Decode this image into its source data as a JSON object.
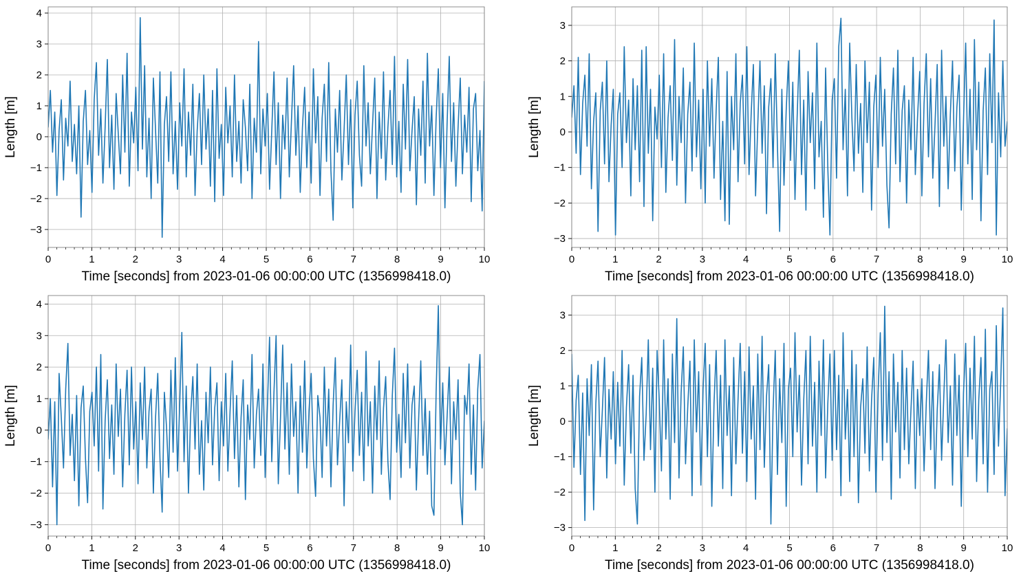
{
  "chart_data": [
    {
      "type": "line",
      "xlabel": "Time [seconds] from 2023-01-06 00:00:00 UTC (1356998418.0)",
      "ylabel": "Length [m]",
      "xlim": [
        0,
        10
      ],
      "ylim": [
        -3.58,
        4.2
      ],
      "xticks": [
        0,
        1,
        2,
        3,
        4,
        5,
        6,
        7,
        8,
        9,
        10
      ],
      "yticks": [
        -3,
        -2,
        -1,
        0,
        1,
        2,
        3,
        4
      ],
      "grid": true,
      "color": "#1f77b4",
      "values": [
        0.3,
        1.5,
        -0.5,
        0.8,
        -1.9,
        0.2,
        1.2,
        -1.4,
        0.6,
        -0.3,
        1.8,
        -0.8,
        0.4,
        -1.2,
        1.0,
        -2.6,
        0.5,
        1.5,
        -0.9,
        0.2,
        -1.8,
        1.2,
        2.4,
        -0.6,
        0.9,
        -1.5,
        0.3,
        2.5,
        -1.0,
        0.7,
        -1.7,
        1.4,
        0.1,
        -1.2,
        2.0,
        -0.5,
        2.7,
        -1.6,
        0.8,
        -0.2,
        1.6,
        -1.1,
        3.85,
        -0.4,
        2.3,
        -1.3,
        0.6,
        -2.0,
        1.9,
        0.2,
        -1.5,
        2.1,
        -3.25,
        0.4,
        1.3,
        -0.8,
        2.1,
        -1.2,
        0.5,
        -1.7,
        1.1,
        -0.3,
        2.2,
        -1.3,
        0.8,
        -0.6,
        1.7,
        -1.9,
        0.2,
        1.4,
        -0.9,
        2.0,
        -0.4,
        0.9,
        -1.6,
        1.5,
        -2.1,
        2.2,
        -0.7,
        0.4,
        -1.9,
        1.6,
        -0.2,
        1.0,
        -1.3,
        2.0,
        -0.8,
        0.5,
        -1.5,
        1.2,
        0.3,
        -1.1,
        1.7,
        -2.0,
        0.6,
        -0.5,
        3.08,
        -1.2,
        0.9,
        -0.3,
        1.4,
        -1.7,
        0.2,
        2.1,
        -0.9,
        1.1,
        -2.0,
        0.7,
        -0.4,
        1.9,
        -1.3,
        0.5,
        2.3,
        -0.6,
        1.0,
        -1.8,
        0.3,
        1.6,
        -1.0,
        0.8,
        -1.5,
        2.2,
        -0.2,
        1.3,
        -1.9,
        0.6,
        1.7,
        -0.8,
        2.4,
        -1.1,
        -2.7,
        0.9,
        -0.5,
        1.5,
        -1.4,
        0.2,
        2.0,
        -0.9,
        1.2,
        -2.3,
        0.7,
        1.8,
        -0.6,
        -1.6,
        2.3,
        -0.3,
        1.1,
        -1.2,
        0.4,
        1.9,
        -2.0,
        0.8,
        -0.7,
        2.1,
        -1.4,
        0.3,
        1.5,
        -0.9,
        2.6,
        -1.3,
        0.5,
        -1.8,
        1.7,
        -0.4,
        2.5,
        -1.1,
        0.2,
        1.3,
        -2.2,
        0.9,
        -0.6,
        1.8,
        -1.5,
        2.7,
        -0.3,
        1.0,
        -1.9,
        0.6,
        2.2,
        -1.0,
        1.4,
        -2.3,
        0.4,
        2.6,
        -0.8,
        1.1,
        -1.6,
        0.3,
        1.9,
        -1.2,
        0.7,
        -0.5,
        1.6,
        -2.1,
        0.9,
        1.4,
        -1.1,
        0.2,
        -2.4,
        1.8
      ]
    },
    {
      "type": "line",
      "xlabel": "Time [seconds] from 2023-01-06 00:00:00 UTC (1356998418.0)",
      "ylabel": "Length [m]",
      "xlim": [
        0,
        10
      ],
      "ylim": [
        -3.25,
        3.52
      ],
      "xticks": [
        0,
        1,
        2,
        3,
        4,
        5,
        6,
        7,
        8,
        9,
        10
      ],
      "yticks": [
        -3,
        -2,
        -1,
        0,
        1,
        2,
        3
      ],
      "grid": true,
      "color": "#1f77b4",
      "values": [
        0.4,
        1.3,
        -0.6,
        2.1,
        -1.2,
        0.8,
        1.6,
        -0.4,
        2.2,
        -1.6,
        0.3,
        1.1,
        -2.8,
        0.6,
        1.4,
        -0.9,
        2.0,
        -1.4,
        0.2,
        1.2,
        -2.9,
        0.5,
        1.1,
        -1.0,
        2.4,
        -0.3,
        0.9,
        -1.8,
        1.5,
        -0.5,
        1.3,
        -1.4,
        2.3,
        -2.1,
        2.4,
        -0.6,
        1.2,
        -2.5,
        0.7,
        -0.2,
        1.6,
        -1.0,
        2.2,
        -1.7,
        0.4,
        1.3,
        -0.8,
        2.6,
        -1.5,
        1.0,
        -0.3,
        1.8,
        -2.0,
        0.5,
        1.4,
        -1.1,
        2.5,
        -0.7,
        0.9,
        -1.6,
        1.2,
        -2.0,
        2.0,
        -0.4,
        1.5,
        -1.3,
        0.6,
        2.1,
        -1.9,
        0.3,
        -2.5,
        1.7,
        -2.6,
        1.0,
        -0.5,
        2.2,
        -1.4,
        0.8,
        1.6,
        -0.9,
        2.4,
        -1.2,
        0.5,
        1.9,
        -1.8,
        0.2,
        2.0,
        -0.6,
        1.3,
        -2.3,
        0.7,
        1.5,
        -1.0,
        2.2,
        -0.4,
        -2.8,
        1.2,
        -1.5,
        0.6,
        2.0,
        -0.8,
        1.4,
        -1.9,
        0.4,
        2.3,
        -1.2,
        0.9,
        -2.2,
        1.7,
        -0.3,
        1.1,
        -1.6,
        2.5,
        -0.7,
        0.3,
        -2.4,
        1.8,
        -1.0,
        -2.9,
        0.9,
        1.5,
        -1.3,
        2.4,
        3.2,
        -0.5,
        1.2,
        -1.8,
        2.5,
        0.4,
        -1.1,
        1.9,
        -0.6,
        0.8,
        -1.7,
        2.0,
        -0.3,
        1.4,
        -2.2,
        0.7,
        1.6,
        -1.0,
        2.1,
        -0.4,
        1.2,
        -1.5,
        -2.7,
        0.5,
        1.8,
        -0.9,
        2.3,
        -1.4,
        0.6,
        1.3,
        -2.0,
        0.9,
        -0.5,
        2.1,
        -1.2,
        0.4,
        1.7,
        -1.8,
        0.8,
        2.2,
        -0.7,
        1.5,
        -1.3,
        0.2,
        1.9,
        -2.1,
        2.3,
        -0.4,
        1.0,
        -1.6,
        0.5,
        2.0,
        -1.1,
        0.7,
        1.6,
        -2.2,
        0.3,
        2.5,
        -0.9,
        1.2,
        -1.9,
        2.6,
        -0.5,
        1.4,
        -2.5,
        0.6,
        1.8,
        -1.2,
        2.2,
        -0.3,
        3.15,
        -2.9,
        1.1,
        -0.7,
        2.0,
        -0.4,
        0.3
      ]
    },
    {
      "type": "line",
      "xlabel": "Time [seconds] from 2023-01-06 00:00:00 UTC (1356998418.0)",
      "ylabel": "Length [m]",
      "xlim": [
        0,
        10
      ],
      "ylim": [
        -3.36,
        4.27
      ],
      "xticks": [
        0,
        1,
        2,
        3,
        4,
        5,
        6,
        7,
        8,
        9,
        10
      ],
      "yticks": [
        -3,
        -2,
        -1,
        0,
        1,
        2,
        3,
        4
      ],
      "grid": true,
      "color": "#1f77b4",
      "values": [
        -0.3,
        1.0,
        -1.8,
        0.9,
        -3.0,
        1.8,
        0.4,
        -1.2,
        1.3,
        2.75,
        -0.8,
        0.5,
        -1.6,
        1.1,
        -2.4,
        0.7,
        1.4,
        -0.9,
        -2.3,
        0.6,
        1.2,
        -0.5,
        2.0,
        -1.3,
        2.4,
        -2.5,
        0.3,
        1.6,
        -0.9,
        0.8,
        -1.4,
        2.1,
        -0.2,
        1.3,
        -1.8,
        0.5,
        1.9,
        -1.1,
        2.0,
        -0.6,
        0.9,
        -1.7,
        1.5,
        -0.3,
        2.0,
        -1.2,
        0.6,
        1.3,
        -2.0,
        0.4,
        1.8,
        -0.9,
        -2.6,
        1.2,
        0.1,
        -1.5,
        1.9,
        -0.7,
        2.3,
        -1.3,
        0.8,
        3.1,
        -1.0,
        1.4,
        -2.0,
        0.5,
        1.7,
        -0.6,
        2.1,
        -1.4,
        0.3,
        -1.9,
        1.2,
        -0.4,
        2.0,
        -1.1,
        0.7,
        1.5,
        -1.6,
        0.9,
        -0.5,
        1.8,
        -1.3,
        0.6,
        2.2,
        -0.9,
        1.1,
        -1.8,
        0.4,
        1.6,
        -2.2,
        0.8,
        -0.3,
        2.4,
        -1.2,
        0.5,
        1.3,
        -0.8,
        2.1,
        -1.5,
        0.7,
        2.95,
        -1.0,
        1.2,
        3.0,
        -1.7,
        0.4,
        2.7,
        -0.6,
        1.5,
        -1.4,
        2.1,
        -0.2,
        0.9,
        -2.0,
        1.4,
        -0.7,
        2.2,
        -1.2,
        0.6,
        1.8,
        -0.9,
        -2.1,
        1.1,
        0.4,
        -1.5,
        2.0,
        -0.5,
        1.3,
        -1.8,
        0.8,
        2.3,
        -1.1,
        0.3,
        1.6,
        -2.4,
        0.9,
        -0.4,
        2.7,
        -1.3,
        0.6,
        1.9,
        -0.8,
        1.2,
        -1.6,
        2.5,
        -0.5,
        0.9,
        -2.0,
        1.4,
        -0.3,
        2.2,
        -1.4,
        0.7,
        1.7,
        -1.0,
        -2.2,
        1.1,
        2.6,
        -0.7,
        0.5,
        -1.5,
        1.8,
        -0.4,
        2.1,
        -1.2,
        0.8,
        1.4,
        -1.9,
        0.3,
        2.2,
        -0.8,
        1.0,
        -1.4,
        0.6,
        -2.4,
        -2.7,
        1.2,
        3.95,
        -0.6,
        1.5,
        -1.1,
        0.4,
        2.0,
        -1.7,
        0.9,
        -0.3,
        1.6,
        -2.0,
        -3.0,
        1.1,
        0.5,
        2.1,
        -1.4,
        0.8,
        -1.9,
        1.3,
        2.4,
        -1.2,
        0.3
      ]
    },
    {
      "type": "line",
      "xlabel": "Time [seconds] from 2023-01-06 00:00:00 UTC (1356998418.0)",
      "ylabel": "Length [m]",
      "xlim": [
        0,
        10
      ],
      "ylim": [
        -3.24,
        3.55
      ],
      "xticks": [
        0,
        1,
        2,
        3,
        4,
        5,
        6,
        7,
        8,
        9,
        10
      ],
      "yticks": [
        -3,
        -2,
        -1,
        0,
        1,
        2,
        3
      ],
      "grid": true,
      "color": "#1f77b4",
      "values": [
        1.9,
        -1.3,
        0.6,
        1.3,
        -1.5,
        0.8,
        -2.8,
        1.2,
        -0.4,
        1.6,
        -2.5,
        0.5,
        1.7,
        -1.0,
        0.3,
        1.8,
        -1.6,
        0.9,
        -0.5,
        1.4,
        -1.2,
        1.1,
        -0.7,
        2.0,
        -1.8,
        0.4,
        1.6,
        -0.9,
        1.3,
        -1.9,
        -2.9,
        0.7,
        1.8,
        -1.1,
        0.2,
        2.3,
        -0.8,
        1.5,
        -2.0,
        2.0,
        0.6,
        -1.4,
        2.3,
        -0.5,
        1.2,
        -2.2,
        1.9,
        -0.6,
        2.9,
        -1.6,
        0.8,
        2.1,
        -1.2,
        0.4,
        1.7,
        -2.1,
        2.3,
        -0.3,
        1.4,
        -1.8,
        0.9,
        2.2,
        -1.0,
        1.6,
        -2.4,
        0.5,
        2.0,
        -0.7,
        1.3,
        -1.9,
        2.3,
        -0.4,
        1.0,
        -2.1,
        1.8,
        -1.2,
        0.6,
        2.2,
        -0.9,
        1.4,
        -1.7,
        2.1,
        -0.5,
        1.0,
        -2.2,
        1.9,
        -0.8,
        2.4,
        -1.3,
        0.7,
        1.6,
        -2.9,
        0.3,
        2.0,
        -1.5,
        1.2,
        -0.6,
        2.2,
        -2.4,
        0.9,
        1.5,
        -1.0,
        2.5,
        -0.3,
        1.3,
        -1.8,
        0.6,
        2.0,
        -1.2,
        2.4,
        -0.7,
        1.1,
        -2.0,
        1.7,
        -0.4,
        2.3,
        -1.6,
        0.5,
        1.9,
        -1.1,
        2.0,
        -0.8,
        1.3,
        -2.1,
        2.5,
        -0.5,
        0.9,
        -1.7,
        2.0,
        -1.0,
        1.6,
        -2.3,
        0.4,
        1.2,
        -0.9,
        2.1,
        -1.4,
        0.6,
        1.8,
        -2.0,
        0.8,
        2.5,
        -1.1,
        3.25,
        -0.6,
        1.4,
        -2.2,
        1.9,
        -0.3,
        1.1,
        -1.6,
        2.0,
        -0.8,
        1.5,
        -1.2,
        0.3,
        1.7,
        -1.9,
        0.9,
        -0.4,
        1.2,
        -1.4,
        0.5,
        2.0,
        -0.8,
        1.4,
        -1.9,
        0.3,
        1.6,
        -1.1,
        0.7,
        2.3,
        -0.6,
        1.0,
        -1.8,
        1.9,
        -0.4,
        1.3,
        -2.4,
        0.8,
        2.2,
        -1.0,
        1.5,
        -0.5,
        2.4,
        -1.7,
        0.6,
        1.8,
        -1.2,
        2.6,
        -2.0,
        0.9,
        1.4,
        -1.5,
        2.7,
        -0.7,
        1.1,
        3.2,
        -2.1,
        -0.2
      ]
    }
  ]
}
